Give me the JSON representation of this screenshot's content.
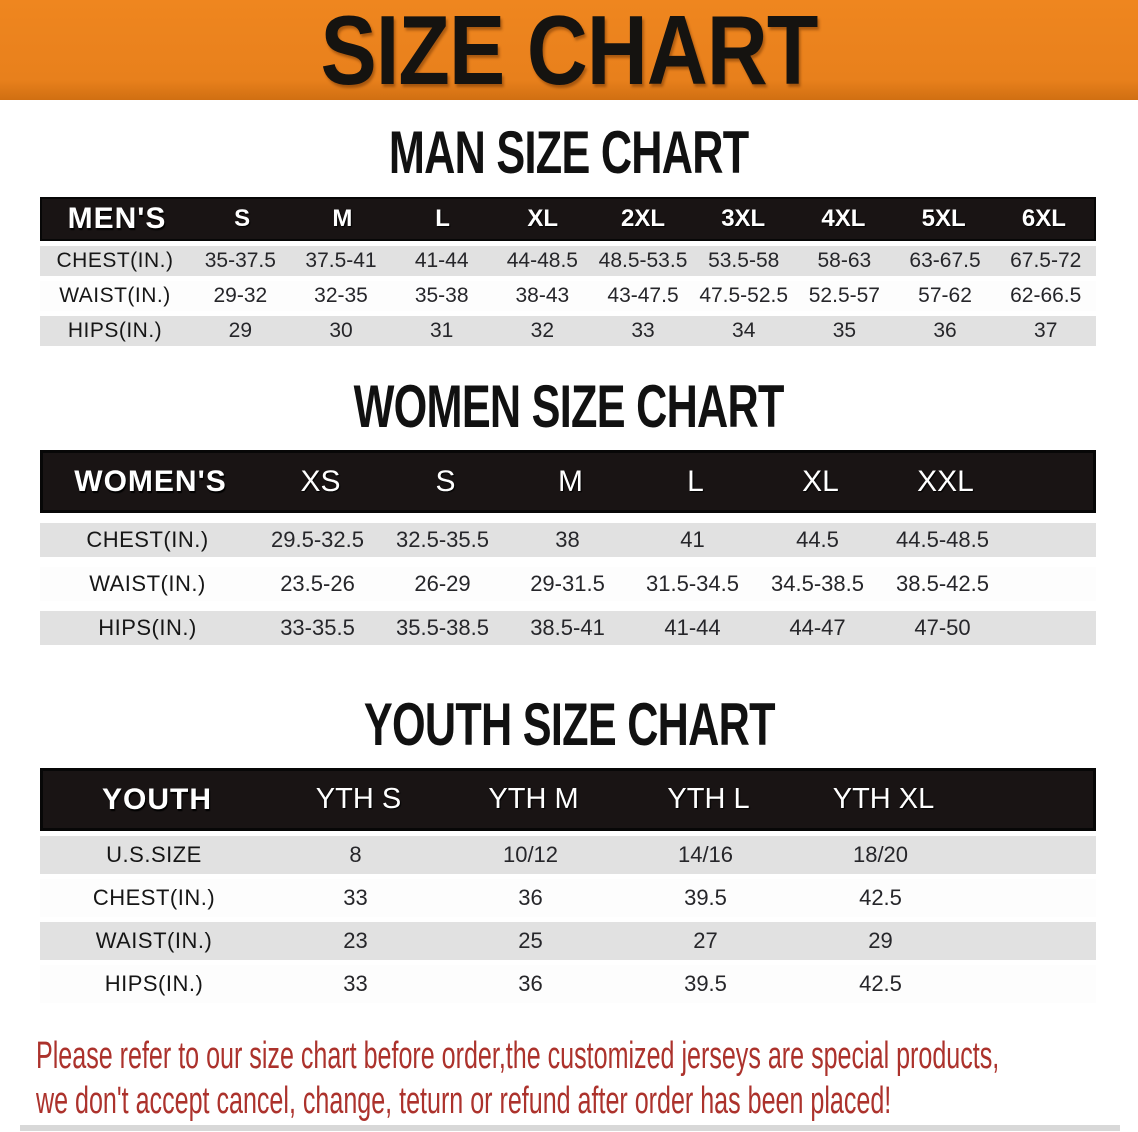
{
  "banner": {
    "title": "SIZE CHART"
  },
  "colors": {
    "banner_orange": "#e8801c",
    "table_header_black": "#191414",
    "stripe_gray": "#e1e1e1",
    "disclaimer_red": "#ac322c"
  },
  "sections": [
    {
      "heading": "MAN SIZE CHART",
      "table": {
        "header_label": "MEN'S",
        "columns": [
          "S",
          "M",
          "L",
          "XL",
          "2XL",
          "3XL",
          "4XL",
          "5XL",
          "6XL"
        ],
        "rows": [
          {
            "label": "CHEST(IN.)",
            "values": [
              "35-37.5",
              "37.5-41",
              "41-44",
              "44-48.5",
              "48.5-53.5",
              "53.5-58",
              "58-63",
              "63-67.5",
              "67.5-72"
            ]
          },
          {
            "label": "WAIST(IN.)",
            "values": [
              "29-32",
              "32-35",
              "35-38",
              "38-43",
              "43-47.5",
              "47.5-52.5",
              "52.5-57",
              "57-62",
              "62-66.5"
            ]
          },
          {
            "label": "HIPS(IN.)",
            "values": [
              "29",
              "30",
              "31",
              "32",
              "33",
              "34",
              "35",
              "36",
              "37"
            ]
          }
        ]
      }
    },
    {
      "heading": "WOMEN SIZE CHART",
      "table": {
        "header_label": "WOMEN'S",
        "columns": [
          "XS",
          "S",
          "M",
          "L",
          "XL",
          "XXL"
        ],
        "rows": [
          {
            "label": "CHEST(IN.)",
            "values": [
              "29.5-32.5",
              "32.5-35.5",
              "38",
              "41",
              "44.5",
              "44.5-48.5"
            ]
          },
          {
            "label": "WAIST(IN.)",
            "values": [
              "23.5-26",
              "26-29",
              "29-31.5",
              "31.5-34.5",
              "34.5-38.5",
              "38.5-42.5"
            ]
          },
          {
            "label": "HIPS(IN.)",
            "values": [
              "33-35.5",
              "35.5-38.5",
              "38.5-41",
              "41-44",
              "44-47",
              "47-50"
            ]
          }
        ]
      }
    },
    {
      "heading": "YOUTH SIZE CHART",
      "table": {
        "header_label": "YOUTH",
        "columns": [
          "YTH S",
          "YTH M",
          "YTH L",
          "YTH XL"
        ],
        "rows": [
          {
            "label": "U.S.SIZE",
            "values": [
              "8",
              "10/12",
              "14/16",
              "18/20"
            ]
          },
          {
            "label": "CHEST(IN.)",
            "values": [
              "33",
              "36",
              "39.5",
              "42.5"
            ]
          },
          {
            "label": "WAIST(IN.)",
            "values": [
              "23",
              "25",
              "27",
              "29"
            ]
          },
          {
            "label": "HIPS(IN.)",
            "values": [
              "33",
              "36",
              "39.5",
              "42.5"
            ]
          }
        ]
      }
    }
  ],
  "disclaimer": {
    "line1": "Please refer to our size chart before order,the customized jerseys are special products,",
    "line2": "we don't accept cancel, change, teturn or refund after order has been placed!"
  }
}
